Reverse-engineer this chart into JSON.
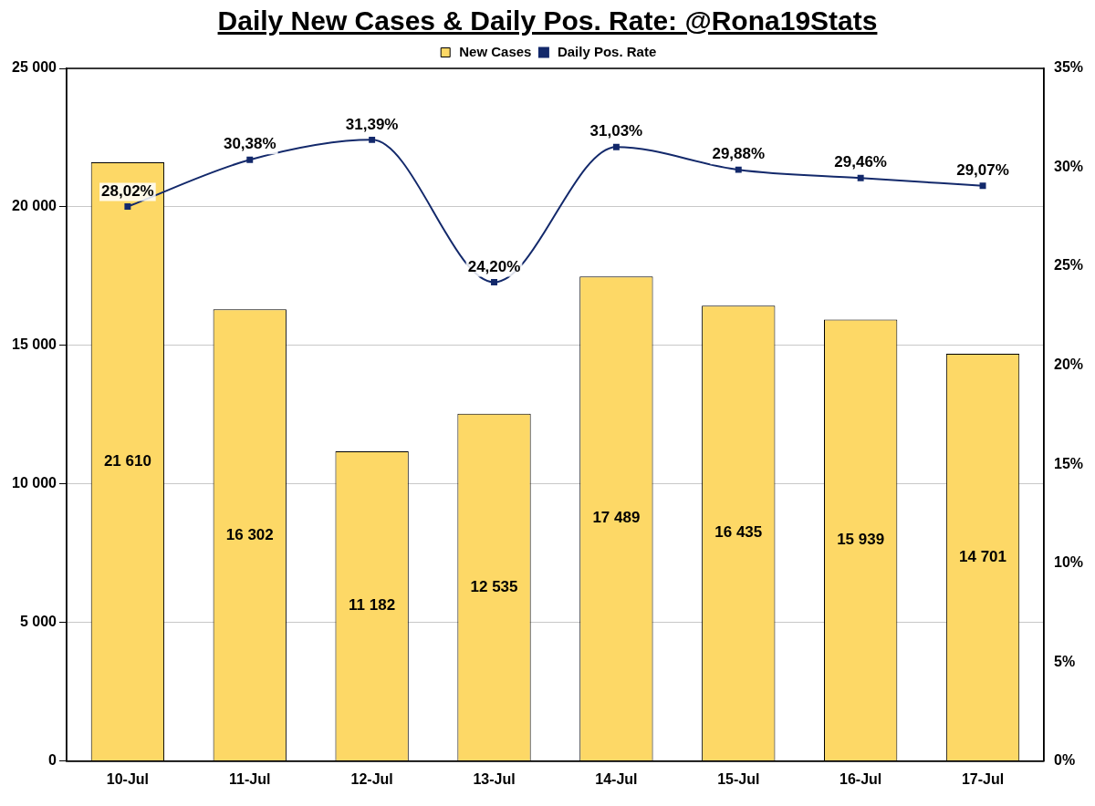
{
  "chart_data": {
    "type": "bar",
    "title": "Daily New Cases & Daily Pos. Rate: @Rona19Stats",
    "categories": [
      "10-Jul",
      "11-Jul",
      "12-Jul",
      "13-Jul",
      "14-Jul",
      "15-Jul",
      "16-Jul",
      "17-Jul"
    ],
    "series": [
      {
        "name": "New Cases",
        "color": "#fdd866",
        "values": [
          21610,
          16302,
          11182,
          12535,
          17489,
          16435,
          15939,
          14701
        ],
        "value_labels": [
          "21 610",
          "16 302",
          "11 182",
          "12 535",
          "17 489",
          "16 435",
          "15 939",
          "14 701"
        ]
      },
      {
        "name": "Daily Pos. Rate",
        "type": "line",
        "axis": "y2",
        "color": "#13296b",
        "marker": "square",
        "values": [
          28.02,
          30.38,
          31.39,
          24.2,
          31.03,
          29.88,
          29.46,
          29.07
        ],
        "value_labels": [
          "28,02%",
          "30,38%",
          "31,39%",
          "24,20%",
          "31,03%",
          "29,88%",
          "29,46%",
          "29,07%"
        ]
      }
    ],
    "ylim": [
      0,
      25000
    ],
    "yticks": [
      {
        "value": 0,
        "label": "0"
      },
      {
        "value": 5000,
        "label": "5 000"
      },
      {
        "value": 10000,
        "label": "10 000"
      },
      {
        "value": 15000,
        "label": "15 000"
      },
      {
        "value": 20000,
        "label": "20 000"
      },
      {
        "value": 25000,
        "label": "25 000"
      }
    ],
    "y2lim": [
      0,
      35
    ],
    "y2ticks": [
      {
        "value": 0,
        "label": "0%"
      },
      {
        "value": 5,
        "label": "5%"
      },
      {
        "value": 10,
        "label": "10%"
      },
      {
        "value": 15,
        "label": "15%"
      },
      {
        "value": 20,
        "label": "20%"
      },
      {
        "value": 25,
        "label": "25%"
      },
      {
        "value": 30,
        "label": "30%"
      },
      {
        "value": 35,
        "label": "35%"
      }
    ],
    "grid": "y",
    "legend": "top"
  }
}
